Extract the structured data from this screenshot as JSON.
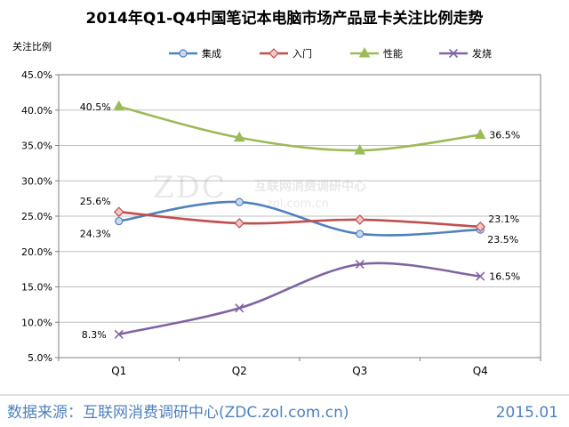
{
  "chart_data": {
    "type": "line",
    "title": "2014年Q1-Q4中国笔记本电脑市场产品显卡关注比例走势",
    "ylabel": "关注比例",
    "xlabel": "",
    "categories": [
      "Q1",
      "Q2",
      "Q3",
      "Q4"
    ],
    "ylim": [
      5.0,
      45.0
    ],
    "yticks": [
      "5.0%",
      "10.0%",
      "15.0%",
      "20.0%",
      "25.0%",
      "30.0%",
      "35.0%",
      "40.0%",
      "45.0%"
    ],
    "grid": true,
    "legend": "top",
    "series": [
      {
        "name": "集成",
        "color": "#4F81BD",
        "marker": "circle",
        "values": [
          24.3,
          27.0,
          22.5,
          23.1
        ],
        "labels": [
          "24.3%",
          "",
          "",
          "23.1%"
        ]
      },
      {
        "name": "入门",
        "color": "#C0504D",
        "marker": "diamond",
        "values": [
          25.6,
          24.0,
          24.5,
          23.5
        ],
        "labels": [
          "25.6%",
          "",
          "",
          "23.5%"
        ]
      },
      {
        "name": "性能",
        "color": "#9BBB59",
        "marker": "triangle",
        "values": [
          40.5,
          36.1,
          34.3,
          36.5
        ],
        "labels": [
          "40.5%",
          "",
          "",
          "36.5%"
        ]
      },
      {
        "name": "发烧",
        "color": "#8064A2",
        "marker": "x",
        "values": [
          8.3,
          12.0,
          18.2,
          16.5
        ],
        "labels": [
          "8.3%",
          "",
          "",
          "16.5%"
        ]
      }
    ]
  },
  "watermark": {
    "logo": "ZDC",
    "text": "互联网消费调研中心",
    "url": "zol.com.cn"
  },
  "footer": {
    "source": "数据来源：互联网消费调研中心(ZDC.zol.com.cn)",
    "date": "2015.01"
  }
}
